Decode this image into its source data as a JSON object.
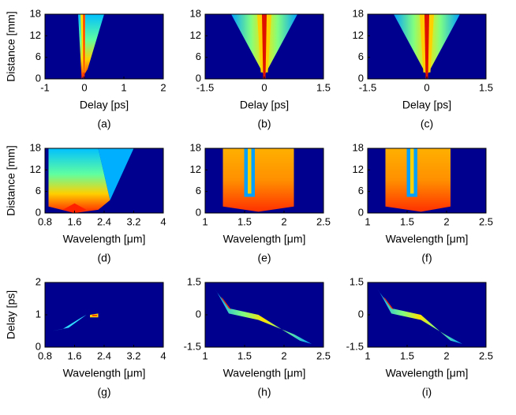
{
  "chart_data": [
    {
      "type": "heatmap",
      "xlabel": "Delay [ps]",
      "ylabel": "Distance [mm]",
      "caption": "(a)",
      "xlim": [
        -1,
        2
      ],
      "xticks": [
        -1,
        0,
        1,
        2
      ],
      "ylim": [
        0,
        18
      ],
      "yticks": [
        0,
        6,
        12,
        18
      ]
    },
    {
      "type": "heatmap",
      "xlabel": "Delay [ps]",
      "caption": "(b)",
      "xlim": [
        -1.5,
        1.5
      ],
      "xticks": [
        -1.5,
        0,
        1.5
      ],
      "ylim": [
        0,
        18
      ],
      "yticks": [
        0,
        6,
        12,
        18
      ]
    },
    {
      "type": "heatmap",
      "xlabel": "Delay [ps]",
      "caption": "(c)",
      "xlim": [
        -1.5,
        1.5
      ],
      "xticks": [
        -1.5,
        0,
        1.5
      ],
      "ylim": [
        0,
        18
      ],
      "yticks": [
        0,
        6,
        12,
        18
      ]
    },
    {
      "type": "heatmap",
      "xlabel": "Wavelength [μm]",
      "ylabel": "Distance [mm]",
      "caption": "(d)",
      "xlim": [
        0.8,
        4
      ],
      "xticks": [
        0.8,
        1.6,
        2.4,
        3.2,
        4
      ],
      "ylim": [
        0,
        18
      ],
      "yticks": [
        0,
        6,
        12,
        18
      ]
    },
    {
      "type": "heatmap",
      "xlabel": "Wavelength [μm]",
      "caption": "(e)",
      "xlim": [
        1,
        2.5
      ],
      "xticks": [
        1,
        1.5,
        2,
        2.5
      ],
      "ylim": [
        0,
        18
      ],
      "yticks": [
        0,
        6,
        12,
        18
      ]
    },
    {
      "type": "heatmap",
      "xlabel": "Wavelength [μm]",
      "caption": "(f)",
      "xlim": [
        1,
        2.5
      ],
      "xticks": [
        1,
        1.5,
        2,
        2.5
      ],
      "ylim": [
        0,
        18
      ],
      "yticks": [
        0,
        6,
        12,
        18
      ]
    },
    {
      "type": "heatmap",
      "xlabel": "Wavelength [μm]",
      "ylabel": "Delay [ps]",
      "caption": "(g)",
      "xlim": [
        0.8,
        4
      ],
      "xticks": [
        0.8,
        1.6,
        2.4,
        3.2,
        4
      ],
      "ylim": [
        0,
        2
      ],
      "yticks": [
        0,
        1,
        2
      ]
    },
    {
      "type": "heatmap",
      "xlabel": "Wavelength [μm]",
      "caption": "(h)",
      "xlim": [
        1,
        2.5
      ],
      "xticks": [
        1,
        1.5,
        2,
        2.5
      ],
      "ylim": [
        -1.5,
        1.5
      ],
      "yticks": [
        -1.5,
        0,
        1.5
      ]
    },
    {
      "type": "heatmap",
      "xlabel": "Wavelength [μm]",
      "caption": "(i)",
      "xlim": [
        1,
        2.5
      ],
      "xticks": [
        1,
        1.5,
        2,
        2.5
      ],
      "ylim": [
        -1.5,
        1.5
      ],
      "yticks": [
        -1.5,
        0,
        1.5
      ]
    }
  ]
}
